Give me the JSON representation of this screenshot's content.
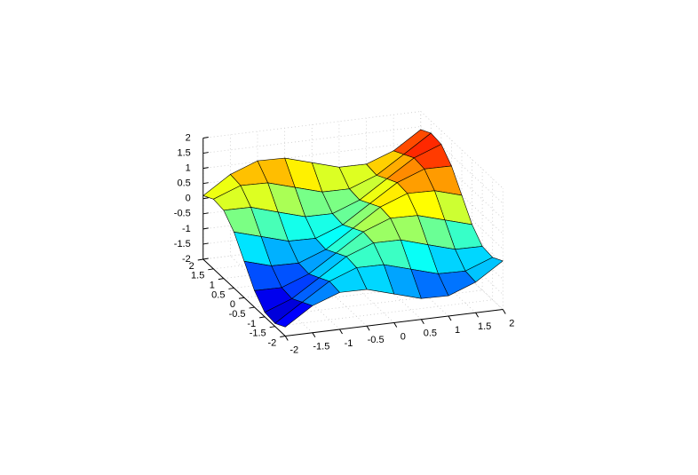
{
  "chart_data": {
    "type": "surface",
    "x": [
      -2,
      -1.5,
      -1,
      -0.5,
      0,
      0.5,
      1,
      1.5,
      2
    ],
    "y": [
      -2,
      -1.5,
      -1,
      -0.5,
      0,
      0.5,
      1,
      1.5,
      2
    ],
    "z": [
      [
        -1.7,
        -1.11,
        -0.78,
        -0.79,
        -1.05,
        -1.31,
        -1.33,
        -0.99,
        -0.4
      ],
      [
        -1.9,
        -1.31,
        -0.73,
        -0.39,
        -0.4,
        -0.66,
        -0.92,
        -0.94,
        -0.6
      ],
      [
        -1.85,
        -1.51,
        -0.93,
        -0.34,
        0.0,
        -0.01,
        -0.28,
        -0.54,
        -0.55
      ],
      [
        -1.45,
        -1.46,
        -1.12,
        -0.54,
        0.05,
        0.39,
        0.37,
        0.11,
        -0.15
      ],
      [
        -0.8,
        -1.06,
        -1.08,
        -0.74,
        -0.15,
        0.44,
        0.78,
        0.76,
        0.5
      ],
      [
        -0.15,
        -0.41,
        -0.67,
        -0.69,
        -0.35,
        0.24,
        0.82,
        1.16,
        1.15
      ],
      [
        0.25,
        0.24,
        -0.03,
        -0.29,
        -0.3,
        0.04,
        0.63,
        1.21,
        1.55
      ],
      [
        0.3,
        0.64,
        0.62,
        0.36,
        0.1,
        0.09,
        0.43,
        1.01,
        1.6
      ],
      [
        0.1,
        0.69,
        1.03,
        1.01,
        0.75,
        0.49,
        0.48,
        0.81,
        1.4
      ]
    ],
    "xlim": [
      -2,
      2
    ],
    "ylim": [
      -2,
      2
    ],
    "zlim": [
      -2,
      2
    ],
    "xticks": [
      -2,
      -1.5,
      -1,
      -0.5,
      0,
      0.5,
      1,
      1.5,
      2
    ],
    "yticks": [
      -2,
      -1.5,
      -1,
      -0.5,
      0,
      0.5,
      1,
      1.5,
      2
    ],
    "zticks": [
      -2,
      -1.5,
      -1,
      -0.5,
      0,
      0.5,
      1,
      1.5,
      2
    ],
    "grid": true,
    "colormap": "jet",
    "edgecolor": "#000000"
  }
}
